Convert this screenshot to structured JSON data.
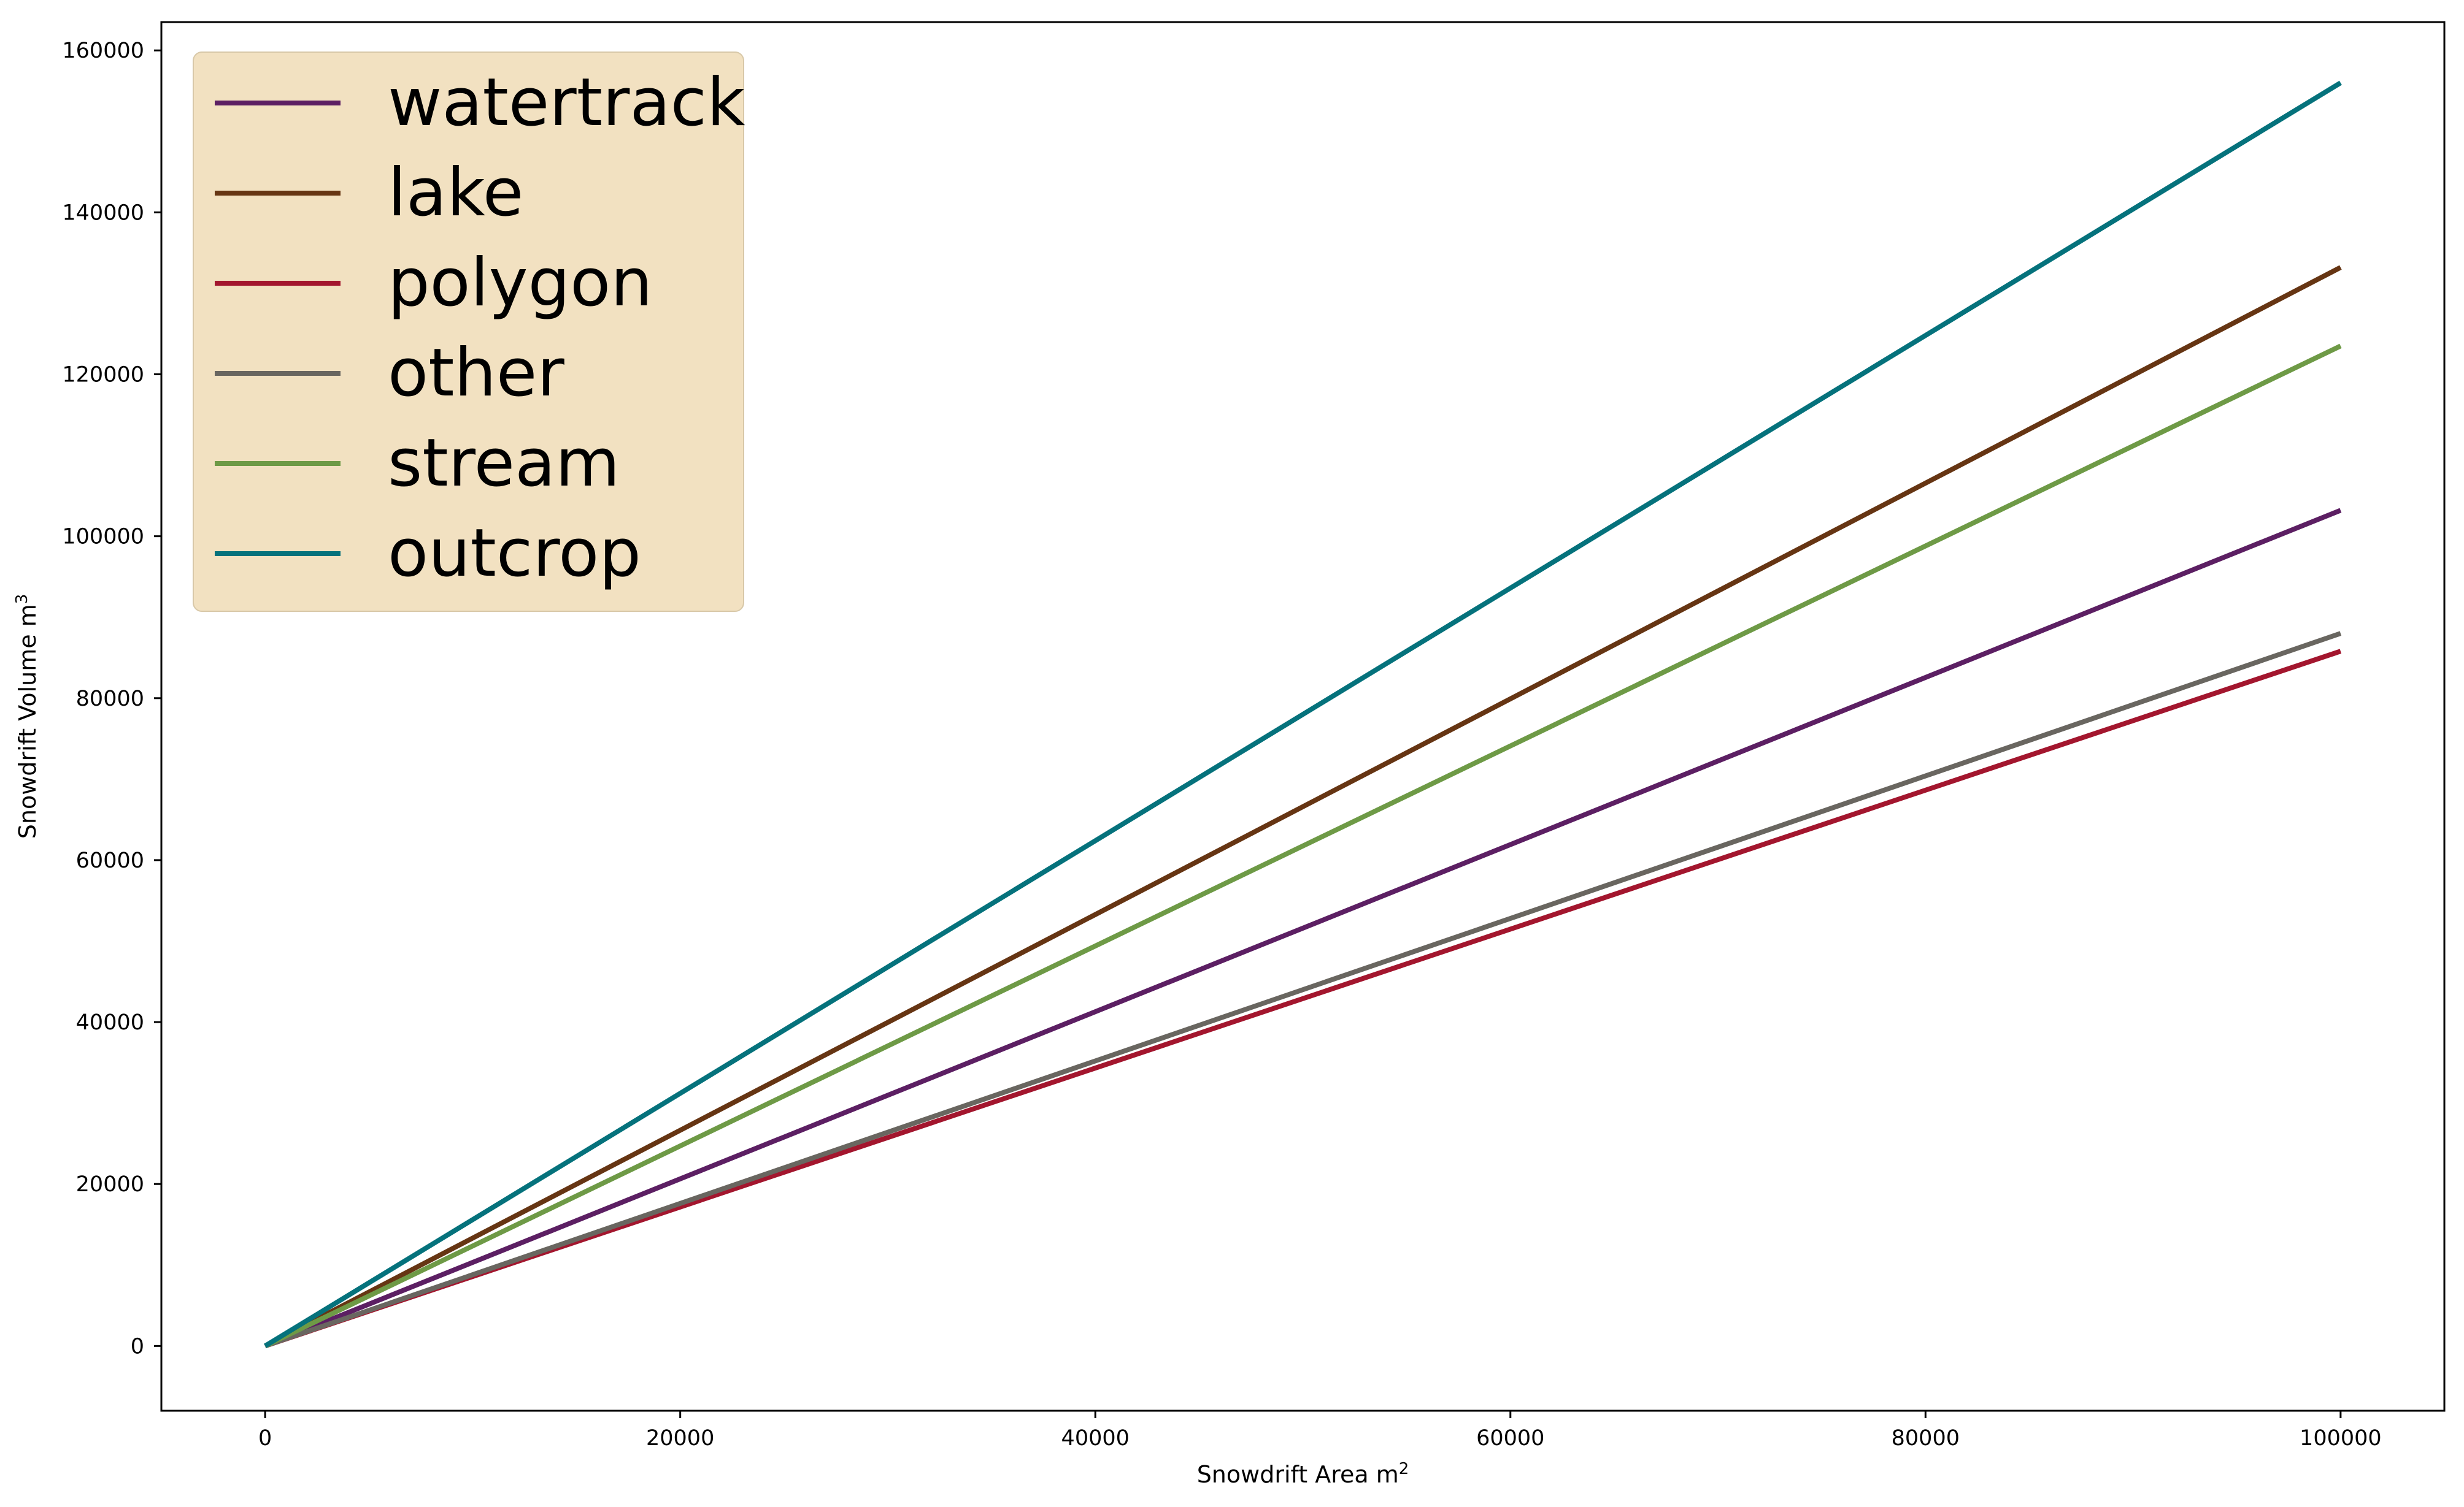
{
  "chart_data": {
    "type": "line",
    "title": "",
    "xlabel": "Snowdrift Area m",
    "xlabel_sup": "2",
    "ylabel": "Snowdrift Volume m",
    "ylabel_sup": "3",
    "xlim": [
      -5000,
      105000
    ],
    "ylim": [
      -8000,
      163500
    ],
    "xticks": [
      0,
      20000,
      40000,
      60000,
      80000,
      100000
    ],
    "yticks": [
      0,
      20000,
      40000,
      60000,
      80000,
      100000,
      120000,
      140000,
      160000
    ],
    "grid": false,
    "legend_position": "top-left",
    "legend_background": "#f2e1c1",
    "series": [
      {
        "name": "watertrack",
        "color": "#5c1f63",
        "x": [
          0,
          100000
        ],
        "y": [
          0,
          103200
        ]
      },
      {
        "name": "lake",
        "color": "#663513",
        "x": [
          0,
          100000
        ],
        "y": [
          0,
          133200
        ]
      },
      {
        "name": "polygon",
        "color": "#a3162e",
        "x": [
          0,
          100000
        ],
        "y": [
          0,
          85800
        ]
      },
      {
        "name": "other",
        "color": "#696660",
        "x": [
          0,
          100000
        ],
        "y": [
          0,
          88000
        ]
      },
      {
        "name": "stream",
        "color": "#6e9a46",
        "x": [
          0,
          100000
        ],
        "y": [
          0,
          123500
        ]
      },
      {
        "name": "outcrop",
        "color": "#05727c",
        "x": [
          0,
          100000
        ],
        "y": [
          0,
          156000
        ]
      }
    ]
  }
}
